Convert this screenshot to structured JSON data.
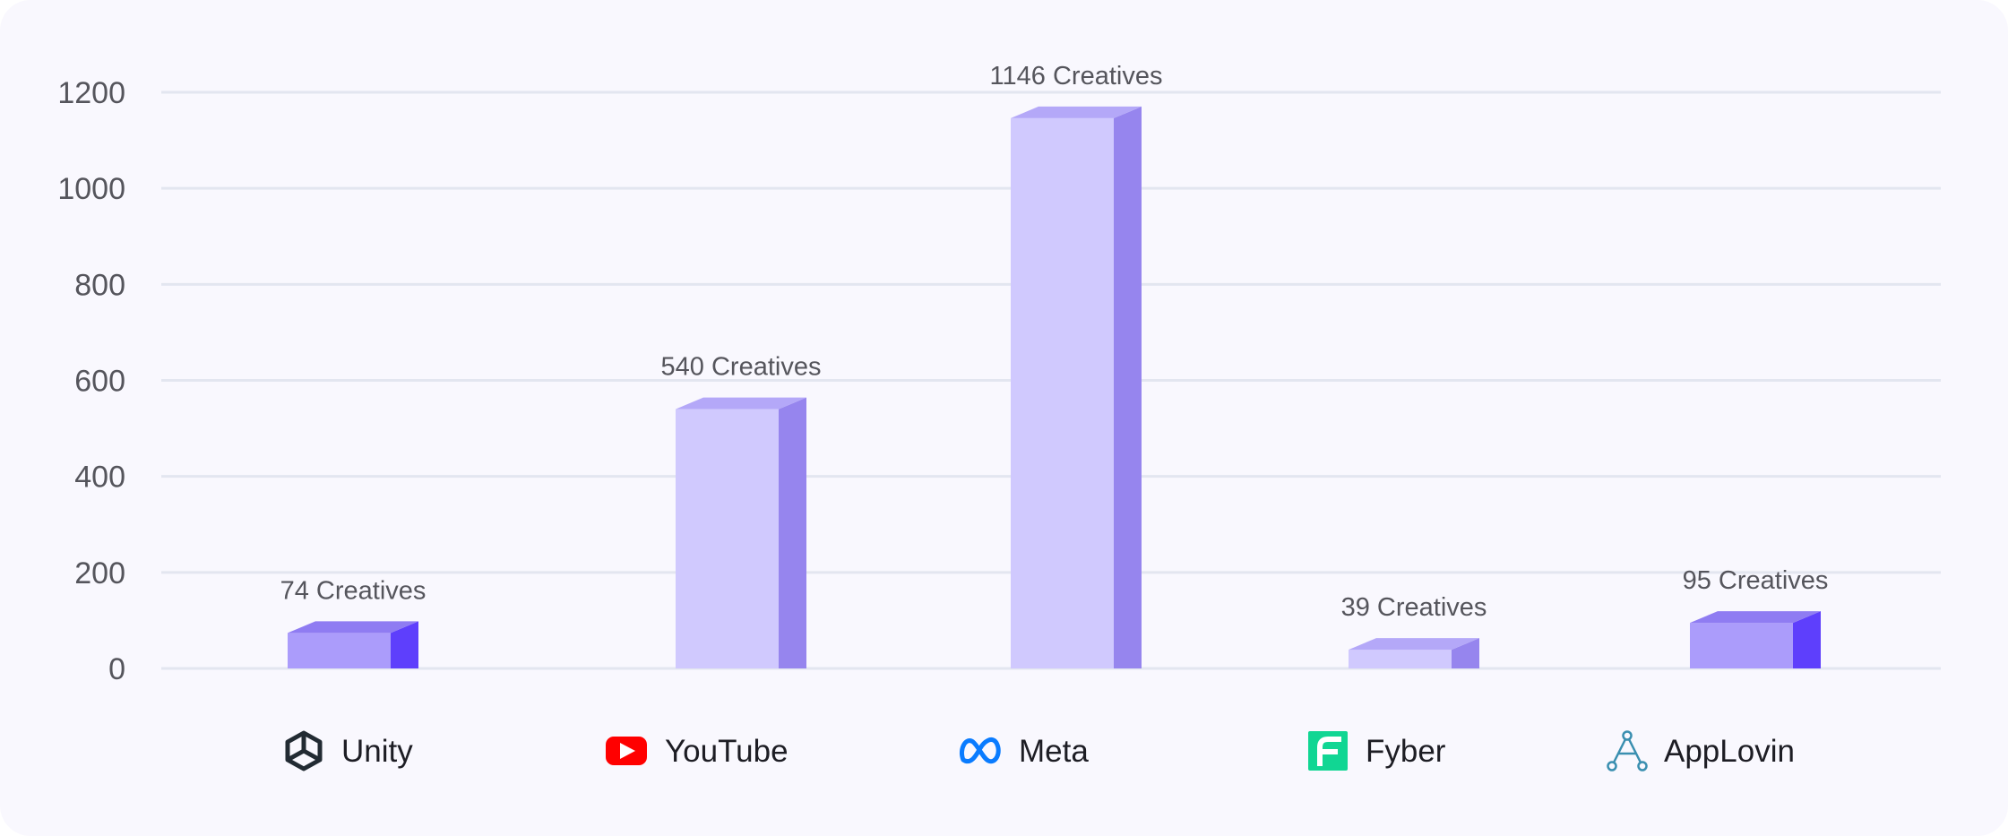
{
  "chart_data": {
    "type": "bar",
    "categories": [
      "Unity",
      "YouTube",
      "Meta",
      "Fyber",
      "AppLovin"
    ],
    "values": [
      74,
      540,
      1146,
      39,
      95
    ],
    "data_labels": [
      "74 Creatives",
      "540 Creatives",
      "1146 Creatives",
      "39 Creatives",
      "95 Creatives"
    ],
    "yticks": [
      "0",
      "200",
      "400",
      "600",
      "800",
      "1000",
      "1200"
    ],
    "ylim": [
      0,
      1200
    ],
    "grid": true,
    "bar_colors": [
      {
        "front": "#ab9cfb",
        "side": "#5e3ffc",
        "top": "#8f7cf2"
      },
      {
        "front": "#d0c9fe",
        "side": "#9685ee",
        "top": "#b4a8f8"
      },
      {
        "front": "#d0c9fe",
        "side": "#9685ee",
        "top": "#b4a8f8"
      },
      {
        "front": "#d0c9fe",
        "side": "#9685ee",
        "top": "#b4a8f8"
      },
      {
        "front": "#ab9cfb",
        "side": "#5e3ffc",
        "top": "#8f7cf2"
      }
    ],
    "category_icons": [
      "unity-icon",
      "youtube-icon",
      "meta-icon",
      "fyber-icon",
      "applovin-icon"
    ],
    "colors": {
      "background": "#f9f8fe",
      "grid": "#e3e6f0",
      "text": "#55555c",
      "label": "#1d1d24"
    }
  }
}
